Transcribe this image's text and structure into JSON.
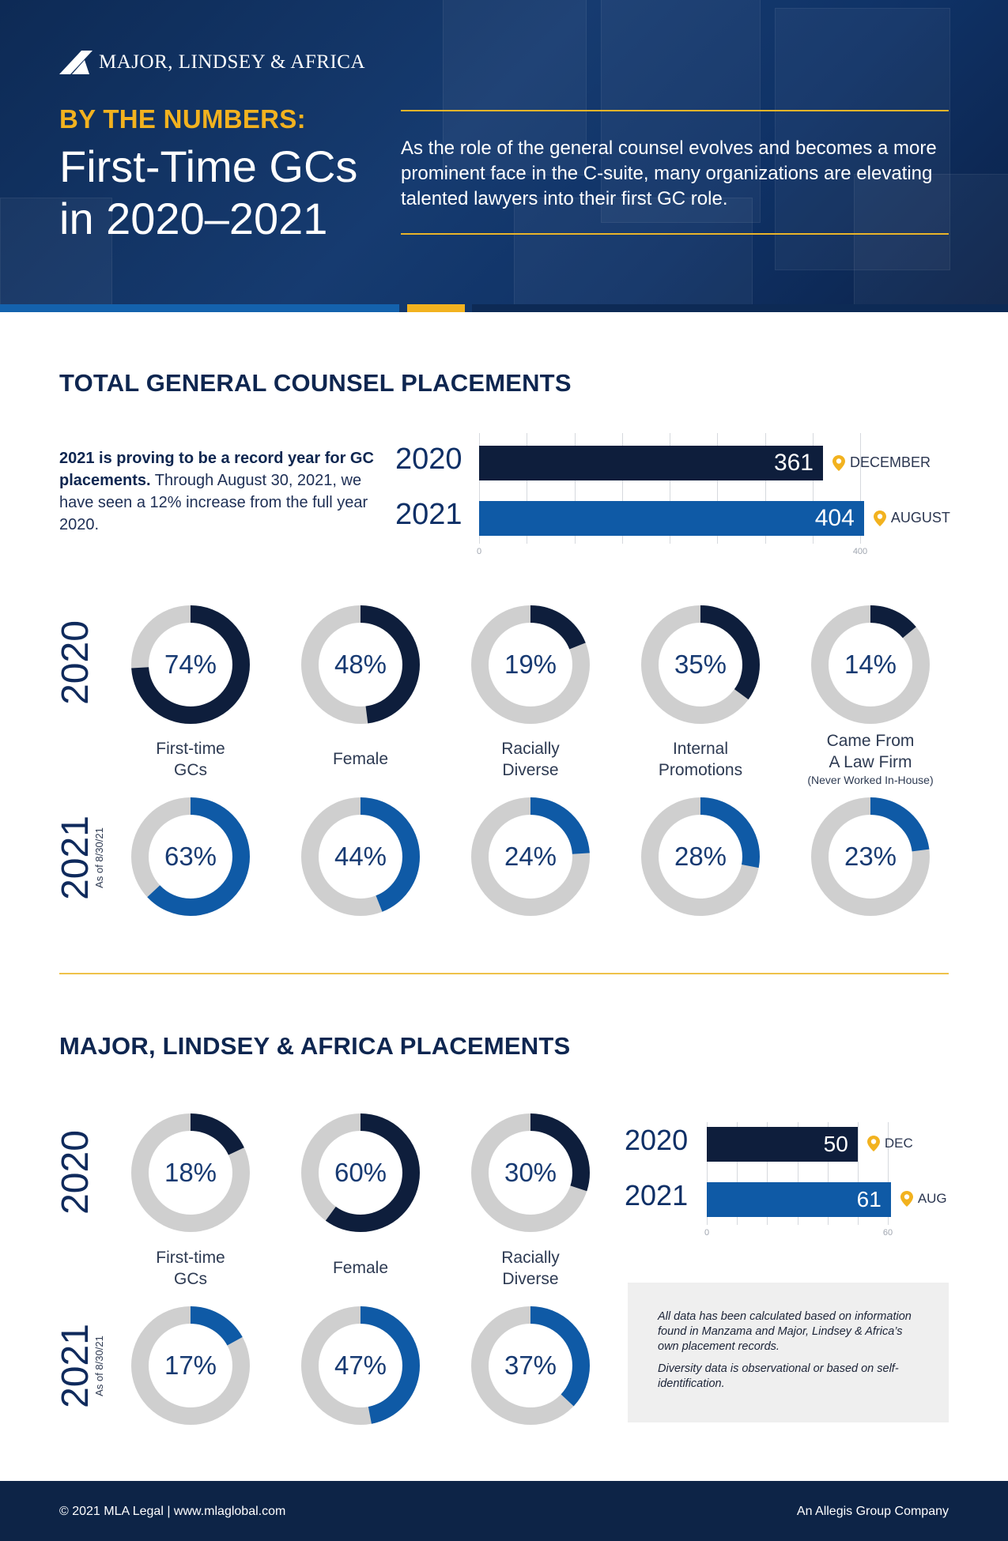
{
  "header": {
    "brand": "MAJOR, LINDSEY & AFRICA",
    "eyebrow": "BY THE NUMBERS:",
    "title_line1": "First-Time GCs",
    "title_line2": "in 2020–2021",
    "intro": "As the role of the general counsel evolves and becomes a more prominent face in the C-suite, many organizations are elevating talented lawyers into their first GC role."
  },
  "colors": {
    "navy": "#0e1e3c",
    "blue": "#0f5aa6",
    "gold": "#f2b21f",
    "gray": "#cfcfcf"
  },
  "section1": {
    "title": "TOTAL GENERAL COUNSEL PLACEMENTS",
    "blurb_bold": "2021 is proving to be a record year for GC placements.",
    "blurb_rest": " Through August 30, 2021, we have seen a 12% increase from the full year 2020.",
    "year_2020": "2020",
    "year_2021": "2021",
    "as_of": "As of 8/30/21"
  },
  "section2": {
    "title": "MAJOR, LINDSEY & AFRICA PLACEMENTS",
    "year_2020": "2020",
    "year_2021": "2021",
    "as_of": "As of 8/30/21",
    "note_p1": "All data has been calculated based on information found in Manzama and Major, Lindsey & Africa’s own placement records.",
    "note_p2": "Diversity data is observational or based on self-identification."
  },
  "footer": {
    "left": "© 2021 MLA Legal  |  www.mlaglobal.com",
    "right": "An Allegis Group Company"
  },
  "chart_data": [
    {
      "type": "bar",
      "orientation": "horizontal",
      "categories": [
        "2020",
        "2021"
      ],
      "values": [
        361,
        404
      ],
      "value_labels": [
        "361",
        "404"
      ],
      "annotations": [
        "DECEMBER",
        "AUGUST"
      ],
      "xlim": [
        0,
        400
      ],
      "tick_labels": [
        "0",
        "400"
      ],
      "bar_colors": [
        "#0e1e3c",
        "#0f5aa6"
      ]
    },
    {
      "type": "pie",
      "variant": "donut",
      "categories": [
        "First-time GCs",
        "Female",
        "Racially Diverse",
        "Internal Promotions",
        "Came From A Law Firm"
      ],
      "category_sub": [
        "",
        "",
        "",
        "",
        "(Never Worked In-House)"
      ],
      "series": [
        {
          "name": "2020",
          "values": [
            74,
            48,
            19,
            35,
            14
          ],
          "labels": [
            "74%",
            "48%",
            "19%",
            "35%",
            "14%"
          ],
          "color": "#0e1e3c"
        },
        {
          "name": "2021",
          "values": [
            63,
            44,
            24,
            28,
            23
          ],
          "labels": [
            "63%",
            "44%",
            "24%",
            "28%",
            "23%"
          ],
          "color": "#0f5aa6"
        }
      ]
    },
    {
      "type": "pie",
      "variant": "donut",
      "categories": [
        "First-time GCs",
        "Female",
        "Racially Diverse"
      ],
      "series": [
        {
          "name": "2020",
          "values": [
            18,
            60,
            30
          ],
          "labels": [
            "18%",
            "60%",
            "30%"
          ],
          "color": "#0e1e3c"
        },
        {
          "name": "2021",
          "values": [
            17,
            47,
            37
          ],
          "labels": [
            "17%",
            "47%",
            "37%"
          ],
          "color": "#0f5aa6"
        }
      ]
    },
    {
      "type": "bar",
      "orientation": "horizontal",
      "categories": [
        "2020",
        "2021"
      ],
      "values": [
        50,
        61
      ],
      "value_labels": [
        "50",
        "61"
      ],
      "annotations": [
        "DEC",
        "AUG"
      ],
      "xlim": [
        0,
        60
      ],
      "tick_labels": [
        "0",
        "60"
      ],
      "bar_colors": [
        "#0e1e3c",
        "#0f5aa6"
      ]
    }
  ]
}
